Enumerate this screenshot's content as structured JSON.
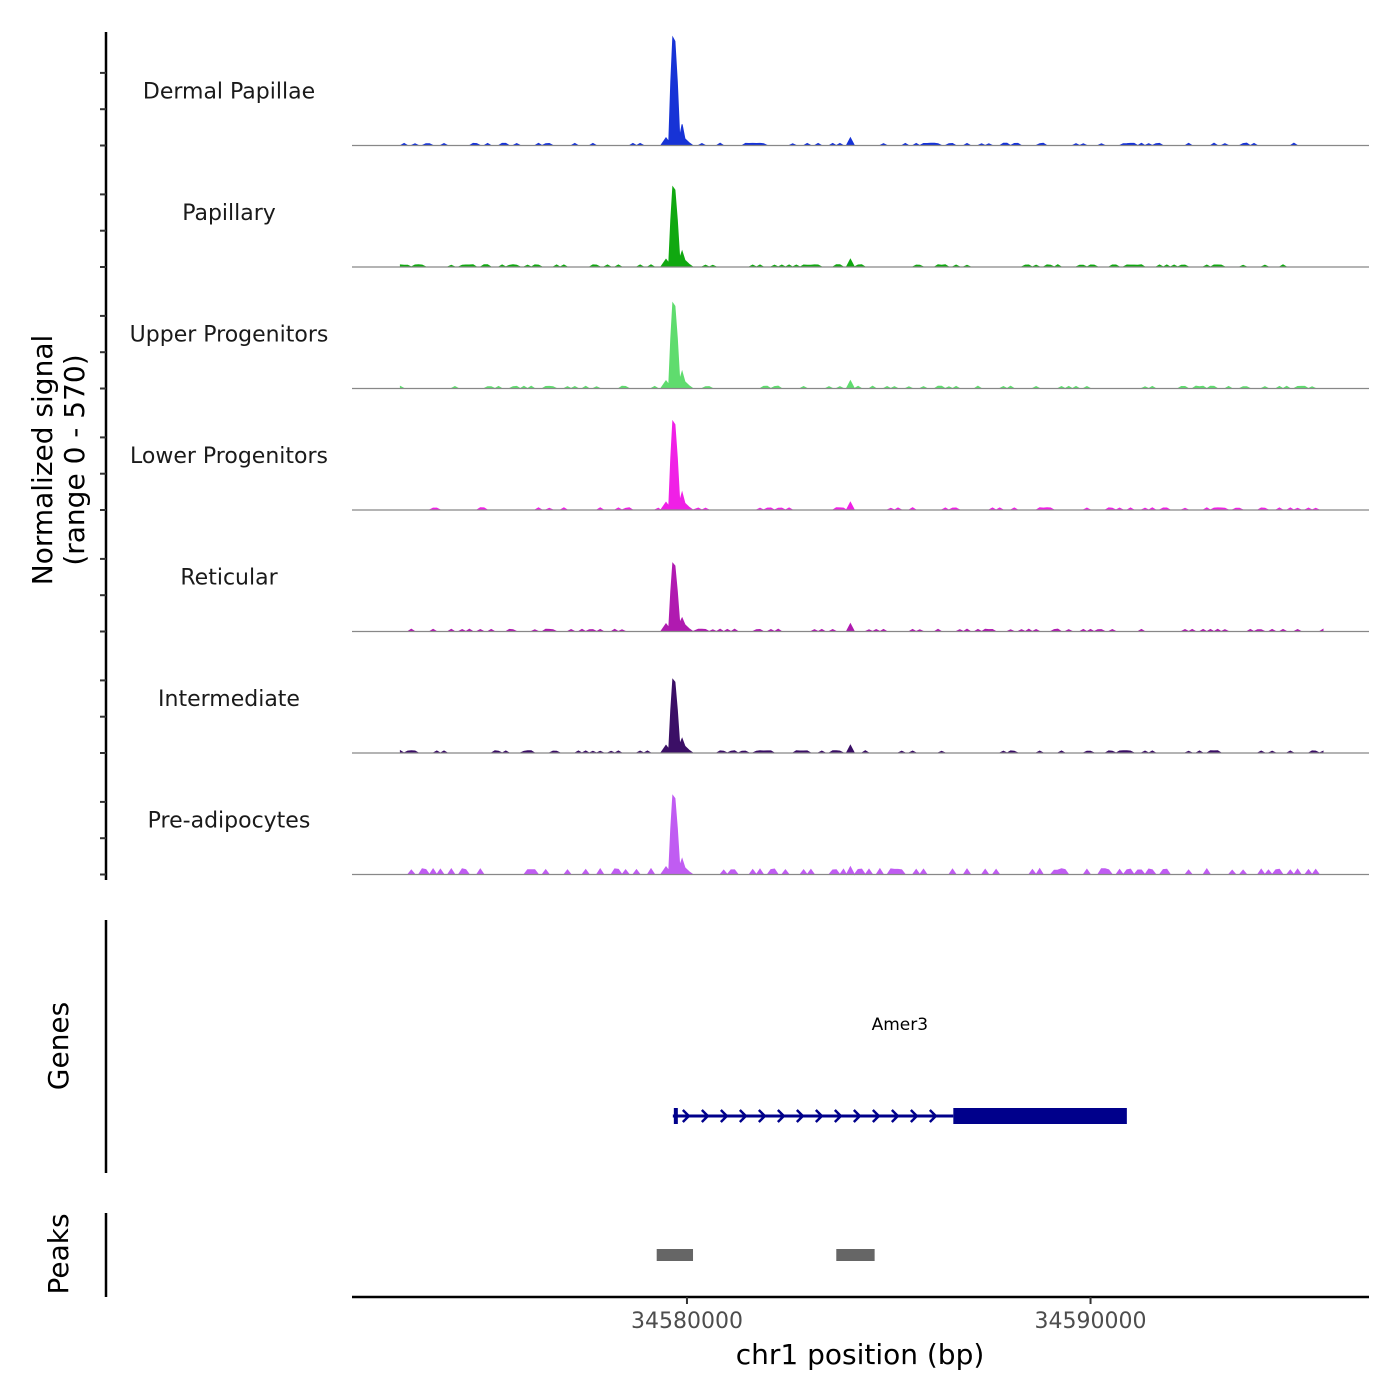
{
  "chart_data": {
    "type": "area",
    "title": "",
    "ylabel_line1": "Normalized signal",
    "ylabel_line2": "(range 0 - 570)",
    "xlabel": "chr1 position (bp)",
    "xlim": [
      34571700,
      34596900
    ],
    "ylim": [
      0,
      570
    ],
    "x_ticks": [
      {
        "value": 34580000,
        "label": "34580000"
      },
      {
        "value": 34590000,
        "label": "34590000"
      }
    ],
    "baseline_color": "#888888",
    "tracks": [
      {
        "name": "Dermal Papillae",
        "color": "#1733d6",
        "peak_scale": 1.0
      },
      {
        "name": "Papillary",
        "color": "#10a810",
        "peak_scale": 0.74
      },
      {
        "name": "Upper Progenitors",
        "color": "#5fdc6e",
        "peak_scale": 0.79
      },
      {
        "name": "Lower Progenitors",
        "color": "#f020e6",
        "peak_scale": 0.82
      },
      {
        "name": "Reticular",
        "color": "#b01ab0",
        "peak_scale": 0.63
      },
      {
        "name": "Intermediate",
        "color": "#3b0f66",
        "peak_scale": 0.68
      },
      {
        "name": "Pre-adipocytes",
        "color": "#c05cf2",
        "peak_scale": 0.73
      }
    ],
    "signal_profile": {
      "x": [
        34579350,
        34579480,
        34579550,
        34579600,
        34579650,
        34579700,
        34579760,
        34579820,
        34579880,
        34579950,
        34580050,
        34580150,
        34583950,
        34584050,
        34584150
      ],
      "y": [
        0,
        40,
        20,
        330,
        560,
        540,
        330,
        45,
        110,
        35,
        15,
        0,
        0,
        40,
        0
      ]
    },
    "genes_track_label": "Genes",
    "genes": [
      {
        "name": "Amer3",
        "start": 34579650,
        "end": 34590900,
        "cds_start": 34586600,
        "cds_end": 34590900,
        "strand": "+",
        "color": "#00008b"
      }
    ],
    "peaks_track_label": "Peaks",
    "peaks_color": "#666666",
    "peaks": [
      {
        "start": 34579250,
        "end": 34580150
      },
      {
        "start": 34583700,
        "end": 34584650
      }
    ]
  }
}
